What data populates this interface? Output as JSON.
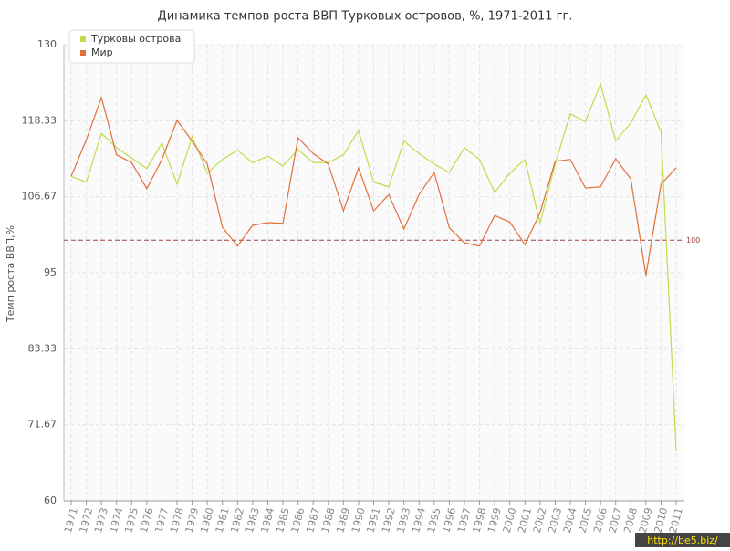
{
  "chart_data": {
    "type": "line",
    "title": "Динамика темпов роста ВВП Турковых островов, %, 1971-2011 гг.",
    "y_label": "Темп роста ВВП,%",
    "watermark": "http://be5.biz/",
    "categories": [
      "1971",
      "1972",
      "1973",
      "1974",
      "1975",
      "1976",
      "1977",
      "1978",
      "1979",
      "1980",
      "1981",
      "1982",
      "1983",
      "1984",
      "1985",
      "1986",
      "1987",
      "1988",
      "1989",
      "1990",
      "1991",
      "1992",
      "1993",
      "1994",
      "1995",
      "1996",
      "1997",
      "1998",
      "1999",
      "2000",
      "2001",
      "2002",
      "2003",
      "2004",
      "2005",
      "2006",
      "2007",
      "2008",
      "2009",
      "2010",
      "2011"
    ],
    "series": [
      {
        "name": "Турковы острова",
        "color": "#bfdc4a",
        "values": [
          109.8,
          108.9,
          116.4,
          114.2,
          112.6,
          111.0,
          114.9,
          108.6,
          115.9,
          110.3,
          112.4,
          113.8,
          111.9,
          112.9,
          111.4,
          113.9,
          111.9,
          111.9,
          113.1,
          116.8,
          108.9,
          108.2,
          115.2,
          113.3,
          111.7,
          110.4,
          114.2,
          112.4,
          107.3,
          110.3,
          112.4,
          102.6,
          111.7,
          119.4,
          118.2,
          124.0,
          115.2,
          118.0,
          122.3,
          116.6,
          67.7
        ]
      },
      {
        "name": "Мир",
        "color": "#e0703c",
        "values": [
          109.8,
          115.4,
          121.9,
          113.1,
          111.9,
          107.9,
          112.4,
          118.4,
          115.2,
          111.7,
          102.0,
          99.1,
          102.3,
          102.7,
          102.6,
          115.7,
          113.3,
          111.7,
          104.5,
          111.1,
          104.5,
          107.0,
          101.7,
          107.0,
          110.4,
          101.9,
          99.6,
          99.1,
          103.8,
          102.8,
          99.3,
          104.2,
          112.1,
          112.4,
          108.0,
          108.2,
          112.5,
          109.4,
          94.6,
          108.6,
          111.1
        ]
      }
    ],
    "reference_line": 100,
    "ylim": [
      60,
      130
    ],
    "yticks": [
      60,
      71.67,
      83.33,
      95,
      106.67,
      118.33,
      130
    ],
    "grid": true
  }
}
